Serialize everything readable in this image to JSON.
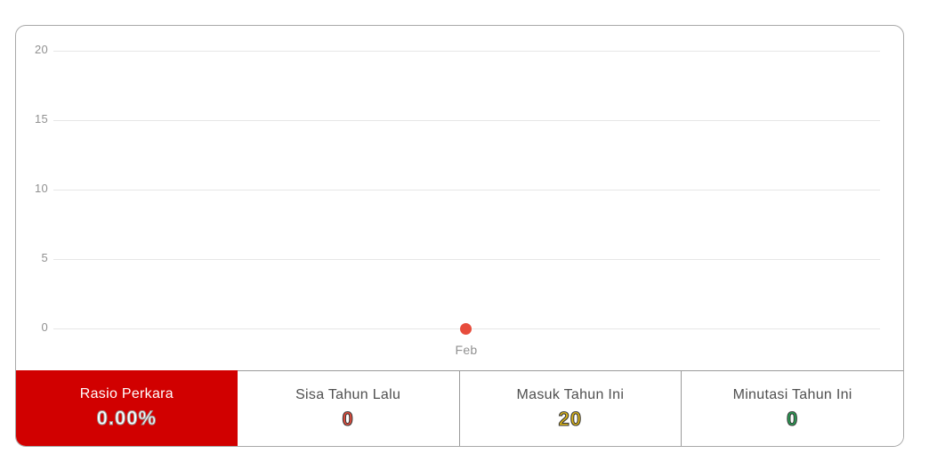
{
  "chart_data": {
    "type": "line",
    "x": [
      "Feb"
    ],
    "series": [
      {
        "name": "perkara-per-bulan",
        "values": [
          0
        ]
      }
    ],
    "title": "",
    "xlabel": "",
    "ylabel": "",
    "ylim": [
      0,
      20
    ],
    "y_ticks": [
      0,
      5,
      10,
      15,
      20
    ],
    "grid": "horizontal",
    "legend": "none",
    "point_color": "#e74c3c"
  },
  "chart": {
    "y_tick_labels": [
      "20",
      "15",
      "10",
      "5",
      "0"
    ],
    "x_tick_labels": [
      "Feb"
    ]
  },
  "stats": {
    "panels": [
      {
        "label": "Rasio Perkara",
        "value": "0.00%",
        "state": "active",
        "background": "#d10000",
        "text_color": "#ffffff"
      },
      {
        "label": "Sisa Tahun Lalu",
        "value": "0",
        "value_color": "#e74c3c"
      },
      {
        "label": "Masuk Tahun Ini",
        "value": "20",
        "value_color": "#d8b117"
      },
      {
        "label": "Minutasi Tahun Ini",
        "value": "0",
        "value_color": "#27a053"
      }
    ]
  },
  "colors": {
    "active_panel_bg": "#d10000",
    "grid_line": "#e6e6e6",
    "axis_text": "#919191",
    "data_point": "#e74c3c",
    "widget_border": "#a8a8a8",
    "divider": "#9b9b9b"
  }
}
